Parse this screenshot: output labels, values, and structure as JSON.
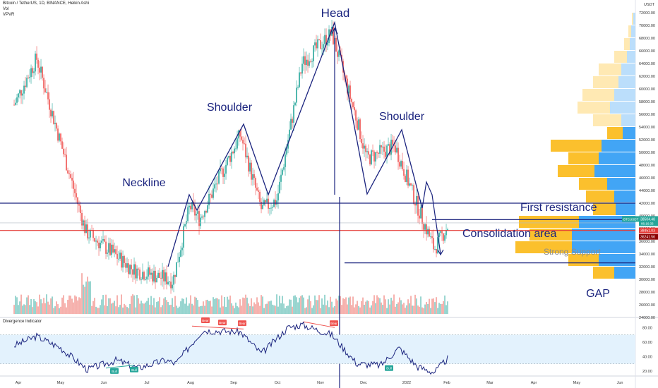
{
  "header": {
    "symbol_line": "Bitcoin / TetherUS, 1D, BINANCE, Heikin Ashi",
    "vol": "Vol",
    "vpvr": "VPVR",
    "currency": "USDT"
  },
  "annotations": {
    "head": "Head",
    "shoulder_left": "Shoulder",
    "shoulder_right": "Shoulder",
    "neckline": "Neckline",
    "first_resistance": "First resistance",
    "consolidation": "Consolidation area",
    "strong_support": "Strong Support",
    "gap": "GAP"
  },
  "price_badges": {
    "symbol": "BTCUSDT",
    "last": "38504.48",
    "last_sub": "06:16:33",
    "red_level": "38451.03",
    "red_level_2": "36241.56"
  },
  "indicator": {
    "title": "Divergence Indicator",
    "bull_tags": [
      "Bull",
      "Bull",
      "Bull"
    ],
    "bear_tags": [
      "Bear",
      "Bear",
      "Bear",
      "Bear"
    ]
  },
  "colors": {
    "up": "#26a69a",
    "down": "#ef5350",
    "pattern_line": "#1a237e",
    "resistance_red": "#e53935",
    "vp_blue": "#42a5f5",
    "vp_yellow": "#fbc02d",
    "vp_blue_light": "#bbdefb",
    "vp_yellow_light": "#ffe9b3",
    "osc_line": "#1a237e",
    "osc_band": "#e3f2fd"
  },
  "chart_data": {
    "type": "candlestick",
    "title": "Bitcoin / TetherUS, 1D, BINANCE, Heikin Ashi",
    "x_ticks": [
      "Apr",
      "May",
      "Jun",
      "Jul",
      "Aug",
      "Sep",
      "Oct",
      "Nov",
      "Dec",
      "2022",
      "Feb",
      "Mar",
      "Apr",
      "May",
      "Jun"
    ],
    "y_ticks": [
      "72000.00",
      "70000.00",
      "68000.00",
      "66000.00",
      "64000.00",
      "62000.00",
      "60000.00",
      "58000.00",
      "56000.00",
      "54000.00",
      "52000.00",
      "50000.00",
      "48000.00",
      "46000.00",
      "44000.00",
      "42000.00",
      "40000.00",
      "38000.00",
      "36000.00",
      "34000.00",
      "32000.00",
      "30000.00",
      "28000.00",
      "26000.00",
      "24000.00"
    ],
    "ylim": [
      24000,
      72000
    ],
    "osc_ticks": [
      "80.00",
      "60.00",
      "40.00",
      "20.00"
    ],
    "osc_ylim": [
      14,
      92
    ],
    "osc_band": [
      30,
      70
    ],
    "levels": {
      "neckline": 42000,
      "first_resistance": 39400,
      "consolidation_red": 37700,
      "strong_support": 32600
    },
    "key_prices": [
      {
        "x": "2021-03-29",
        "price": 57500
      },
      {
        "x": "2021-04-14",
        "price": 64800
      },
      {
        "x": "2021-05-19",
        "price": 37500
      },
      {
        "x": "2021-06-22",
        "price": 31500
      },
      {
        "x": "2021-07-20",
        "price": 29800
      },
      {
        "x": "2021-08-01",
        "price": 41500
      },
      {
        "x": "2021-08-08",
        "price": 39500
      },
      {
        "x": "2021-09-06",
        "price": 52800
      },
      {
        "x": "2021-09-21",
        "price": 41000
      },
      {
        "x": "2021-10-02",
        "price": 42500
      },
      {
        "x": "2021-10-20",
        "price": 64000
      },
      {
        "x": "2021-11-10",
        "price": 68800
      },
      {
        "x": "2021-11-28",
        "price": 55000
      },
      {
        "x": "2021-12-05",
        "price": 49000
      },
      {
        "x": "2021-12-25",
        "price": 51000
      },
      {
        "x": "2022-01-10",
        "price": 41500
      },
      {
        "x": "2022-01-22",
        "price": 34800
      },
      {
        "x": "2022-02-01",
        "price": 38500
      }
    ],
    "oscillator": [
      {
        "x": "2021-03-29",
        "v": 55
      },
      {
        "x": "2021-04-14",
        "v": 68
      },
      {
        "x": "2021-05-01",
        "v": 52
      },
      {
        "x": "2021-05-20",
        "v": 22
      },
      {
        "x": "2021-06-10",
        "v": 35
      },
      {
        "x": "2021-06-25",
        "v": 24
      },
      {
        "x": "2021-07-15",
        "v": 35
      },
      {
        "x": "2021-07-22",
        "v": 30
      },
      {
        "x": "2021-08-10",
        "v": 76
      },
      {
        "x": "2021-09-06",
        "v": 74
      },
      {
        "x": "2021-09-21",
        "v": 44
      },
      {
        "x": "2021-10-10",
        "v": 80
      },
      {
        "x": "2021-10-20",
        "v": 84
      },
      {
        "x": "2021-11-10",
        "v": 70
      },
      {
        "x": "2021-11-28",
        "v": 30
      },
      {
        "x": "2021-12-15",
        "v": 28
      },
      {
        "x": "2021-12-28",
        "v": 52
      },
      {
        "x": "2022-01-10",
        "v": 26
      },
      {
        "x": "2022-01-22",
        "v": 18
      },
      {
        "x": "2022-02-01",
        "v": 38
      }
    ]
  }
}
